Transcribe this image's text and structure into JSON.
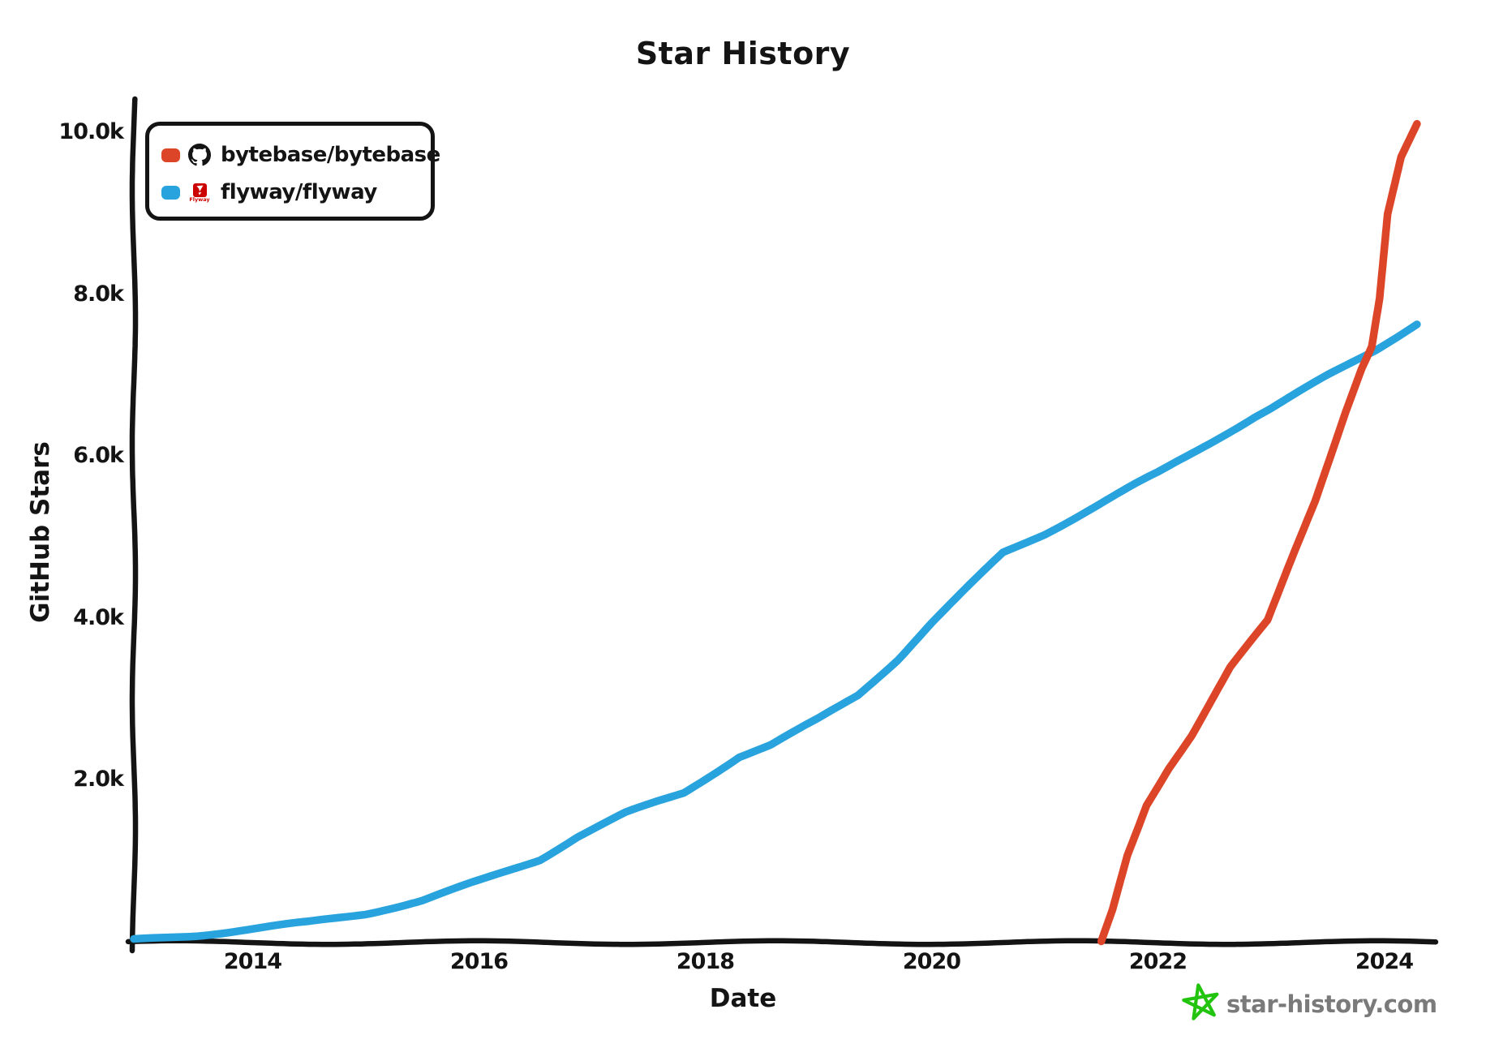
{
  "title": "Star History",
  "legend": {
    "items": [
      {
        "label": "bytebase/bytebase",
        "color": "#dd4528",
        "icon": "github-icon"
      },
      {
        "label": "flyway/flyway",
        "color": "#28a3dd",
        "icon": "flyway-icon"
      }
    ]
  },
  "footer": {
    "site": "star-history.com"
  },
  "colors": {
    "axis": "#141414",
    "footer_text": "#7a7a7a",
    "logo_star_green": "#22c40d",
    "flyway_red": "#cc0200",
    "github_black": "#141414"
  },
  "chart_data": {
    "type": "line",
    "title": "Star History",
    "xlabel": "Date",
    "ylabel": "GitHub Stars",
    "xlim": [
      2012.95,
      2024.42
    ],
    "ylim": [
      0,
      10000
    ],
    "grid": false,
    "legend_position": "top-left",
    "x_ticks": {
      "values": [
        2014,
        2016,
        2018,
        2020,
        2022,
        2024
      ],
      "labels": [
        "2014",
        "2016",
        "2018",
        "2020",
        "2022",
        "2024"
      ]
    },
    "y_ticks": {
      "values": [
        2000,
        4000,
        6000,
        8000,
        10000
      ],
      "labels": [
        "2.0k",
        "4.0k",
        "6.0k",
        "8.0k",
        "10.0k"
      ]
    },
    "series": [
      {
        "name": "bytebase/bytebase",
        "color": "#dd4528",
        "points": [
          [
            2021.5,
            0
          ],
          [
            2021.6,
            400
          ],
          [
            2021.73,
            1070
          ],
          [
            2021.82,
            1400
          ],
          [
            2021.9,
            1700
          ],
          [
            2022.1,
            2170
          ],
          [
            2022.3,
            2570
          ],
          [
            2022.64,
            3400
          ],
          [
            2022.97,
            3970
          ],
          [
            2023.2,
            4800
          ],
          [
            2023.39,
            5460
          ],
          [
            2023.66,
            6570
          ],
          [
            2023.8,
            7100
          ],
          [
            2023.89,
            7370
          ],
          [
            2023.96,
            7970
          ],
          [
            2024.03,
            9000
          ],
          [
            2024.15,
            9700
          ],
          [
            2024.29,
            10100
          ]
        ]
      },
      {
        "name": "flyway/flyway",
        "color": "#28a3dd",
        "points": [
          [
            2012.95,
            30
          ],
          [
            2013.5,
            90
          ],
          [
            2014.0,
            170
          ],
          [
            2014.5,
            250
          ],
          [
            2015.0,
            360
          ],
          [
            2015.5,
            520
          ],
          [
            2016.0,
            760
          ],
          [
            2016.54,
            1030
          ],
          [
            2016.87,
            1310
          ],
          [
            2017.3,
            1600
          ],
          [
            2017.81,
            1850
          ],
          [
            2018.3,
            2300
          ],
          [
            2018.58,
            2440
          ],
          [
            2019.0,
            2760
          ],
          [
            2019.35,
            3060
          ],
          [
            2019.7,
            3500
          ],
          [
            2020.0,
            3950
          ],
          [
            2020.63,
            4810
          ],
          [
            2021.0,
            5050
          ],
          [
            2021.79,
            5650
          ],
          [
            2022.0,
            5800
          ],
          [
            2022.86,
            6500
          ],
          [
            2023.0,
            6600
          ],
          [
            2023.5,
            7000
          ],
          [
            2023.92,
            7320
          ],
          [
            2024.29,
            7650
          ]
        ]
      }
    ]
  }
}
